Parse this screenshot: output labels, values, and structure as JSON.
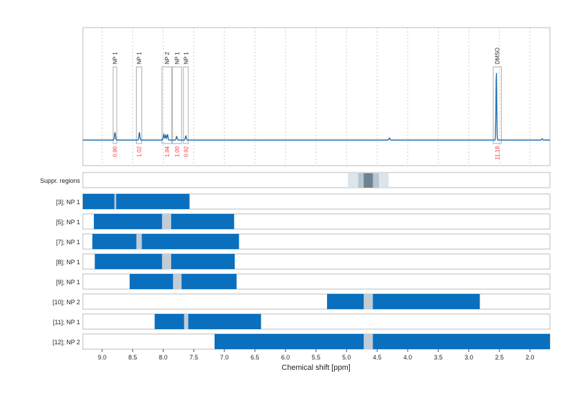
{
  "chart_data": {
    "type": "nmr-spectrum-with-region-bars",
    "xlabel": "Chemical shift [ppm]",
    "xlim": [
      9.316,
      1.673
    ],
    "x_reversed": true,
    "xticks": [
      "9.0",
      "8.5",
      "8.0",
      "7.5",
      "7.0",
      "6.5",
      "6.0",
      "5.5",
      "5.0",
      "4.5",
      "4.0",
      "3.5",
      "3.0",
      "2.5",
      "2.0"
    ],
    "grid": "vertical dotted",
    "colors": {
      "spectrum": "#1f6fb0",
      "bar": "#0a6fbd",
      "gap": "#c0ccd6",
      "integral_label": "#ff3333",
      "suppr_light": "#dde4ea",
      "suppr_mid": "#b9c5cf",
      "suppr_dark": "#6d8393"
    },
    "spectrum_peaks": [
      {
        "ppm": 8.79,
        "height": 0.11
      },
      {
        "ppm": 8.39,
        "height": 0.11
      },
      {
        "ppm": 7.99,
        "height": 0.08
      },
      {
        "ppm": 7.96,
        "height": 0.07
      },
      {
        "ppm": 7.93,
        "height": 0.08
      },
      {
        "ppm": 7.78,
        "height": 0.05
      },
      {
        "ppm": 7.63,
        "height": 0.06
      },
      {
        "ppm": 4.3,
        "height": 0.03
      },
      {
        "ppm": 2.55,
        "height": 1.0
      },
      {
        "ppm": 1.8,
        "height": 0.02
      }
    ],
    "integrals": [
      {
        "label": "NP 1",
        "from": 8.82,
        "to": 8.76,
        "value": "0.90"
      },
      {
        "label": "NP 1",
        "from": 8.44,
        "to": 8.35,
        "value": "1.02"
      },
      {
        "label": "NP 2",
        "from": 8.02,
        "to": 7.86,
        "value": "1.94"
      },
      {
        "label": "NP 1",
        "from": 7.85,
        "to": 7.7,
        "value": "1.00"
      },
      {
        "label": "NP 1",
        "from": 7.67,
        "to": 7.59,
        "value": "0.92"
      },
      {
        "label": "DMSO",
        "from": 2.6,
        "to": 2.47,
        "value": "11.19"
      }
    ],
    "suppression": {
      "label": "Suppr. regions",
      "bands": [
        {
          "from": 4.98,
          "to": 4.31,
          "level": "light"
        },
        {
          "from": 4.81,
          "to": 4.47,
          "level": "mid"
        },
        {
          "from": 4.72,
          "to": 4.57,
          "level": "dark"
        }
      ]
    },
    "rows": [
      {
        "label": "[3]; NP 1",
        "from": 9.316,
        "to": 7.57,
        "gap": [
          8.8,
          8.77
        ]
      },
      {
        "label": "[5]; NP 1",
        "from": 9.135,
        "to": 6.84,
        "gap": [
          8.02,
          7.87
        ]
      },
      {
        "label": "[7]; NP 1",
        "from": 9.16,
        "to": 6.76,
        "gap": [
          8.44,
          8.35
        ]
      },
      {
        "label": "[8]; NP 1",
        "from": 9.12,
        "to": 6.83,
        "gap": [
          8.02,
          7.87
        ]
      },
      {
        "label": "[9]; NP 1",
        "from": 8.55,
        "to": 6.8,
        "gap": [
          7.84,
          7.7
        ]
      },
      {
        "label": "[10]; NP 2",
        "from": 5.32,
        "to": 2.82,
        "gap": [
          4.72,
          4.57
        ]
      },
      {
        "label": "[11]; NP 1",
        "from": 8.14,
        "to": 6.4,
        "gap": [
          7.66,
          7.59
        ]
      },
      {
        "label": "[12]; NP 2",
        "from": 7.16,
        "to": 1.673,
        "gap": [
          4.72,
          4.57
        ]
      }
    ]
  }
}
